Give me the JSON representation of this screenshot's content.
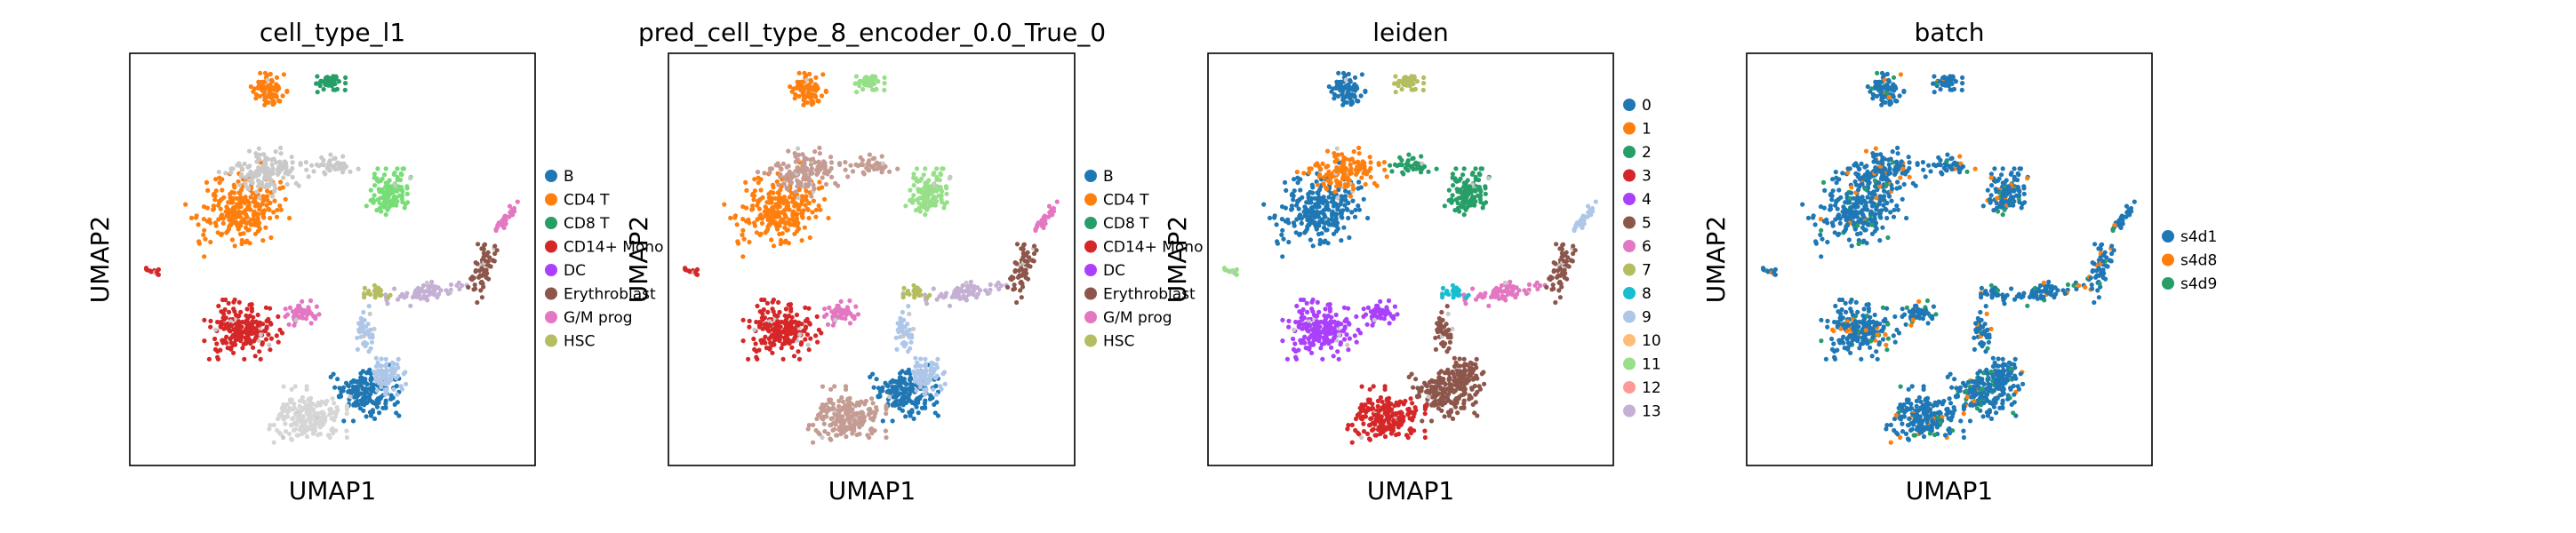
{
  "chart_data": [
    {
      "type": "scatter",
      "title": "cell_type_l1",
      "xlabel": "UMAP1",
      "ylabel": "UMAP2",
      "grid": false,
      "legend": "right",
      "categories": [
        {
          "name": "B",
          "color": "#1f77b4"
        },
        {
          "name": "CD4 T",
          "color": "#ff7f0e"
        },
        {
          "name": "CD8 T",
          "color": "#279e68"
        },
        {
          "name": "CD14+ Mono",
          "color": "#d62728"
        },
        {
          "name": "DC",
          "color": "#aa40fc"
        },
        {
          "name": "Erythroblast",
          "color": "#8c564b"
        },
        {
          "name": "G/M prog",
          "color": "#e377c2"
        },
        {
          "name": "HSC",
          "color": "#b5bd61"
        }
      ]
    },
    {
      "type": "scatter",
      "title": "pred_cell_type_8_encoder_0.0_True_0",
      "xlabel": "UMAP1",
      "ylabel": "UMAP2",
      "grid": false,
      "legend": "right",
      "categories": [
        {
          "name": "B",
          "color": "#1f77b4"
        },
        {
          "name": "CD4 T",
          "color": "#ff7f0e"
        },
        {
          "name": "CD8 T",
          "color": "#279e68"
        },
        {
          "name": "CD14+ Mono",
          "color": "#d62728"
        },
        {
          "name": "DC",
          "color": "#aa40fc"
        },
        {
          "name": "Erythroblast",
          "color": "#8c564b"
        },
        {
          "name": "G/M prog",
          "color": "#e377c2"
        },
        {
          "name": "HSC",
          "color": "#b5bd61"
        }
      ]
    },
    {
      "type": "scatter",
      "title": "leiden",
      "xlabel": "UMAP1",
      "ylabel": "UMAP2",
      "grid": false,
      "legend": "right",
      "categories": [
        {
          "name": "0",
          "color": "#1f77b4"
        },
        {
          "name": "1",
          "color": "#ff7f0e"
        },
        {
          "name": "2",
          "color": "#279e68"
        },
        {
          "name": "3",
          "color": "#d62728"
        },
        {
          "name": "4",
          "color": "#aa40fc"
        },
        {
          "name": "5",
          "color": "#8c564b"
        },
        {
          "name": "6",
          "color": "#e377c2"
        },
        {
          "name": "7",
          "color": "#b5bd61"
        },
        {
          "name": "8",
          "color": "#17becf"
        },
        {
          "name": "9",
          "color": "#aec7e8"
        },
        {
          "name": "10",
          "color": "#ffbb78"
        },
        {
          "name": "11",
          "color": "#98df8a"
        },
        {
          "name": "12",
          "color": "#ff9896"
        },
        {
          "name": "13",
          "color": "#c5b0d5"
        }
      ]
    },
    {
      "type": "scatter",
      "title": "batch",
      "xlabel": "UMAP1",
      "ylabel": "UMAP2",
      "grid": false,
      "legend": "right",
      "categories": [
        {
          "name": "s4d1",
          "color": "#1f77b4"
        },
        {
          "name": "s4d8",
          "color": "#ff7f0e"
        },
        {
          "name": "s4d9",
          "color": "#279e68"
        }
      ]
    }
  ]
}
